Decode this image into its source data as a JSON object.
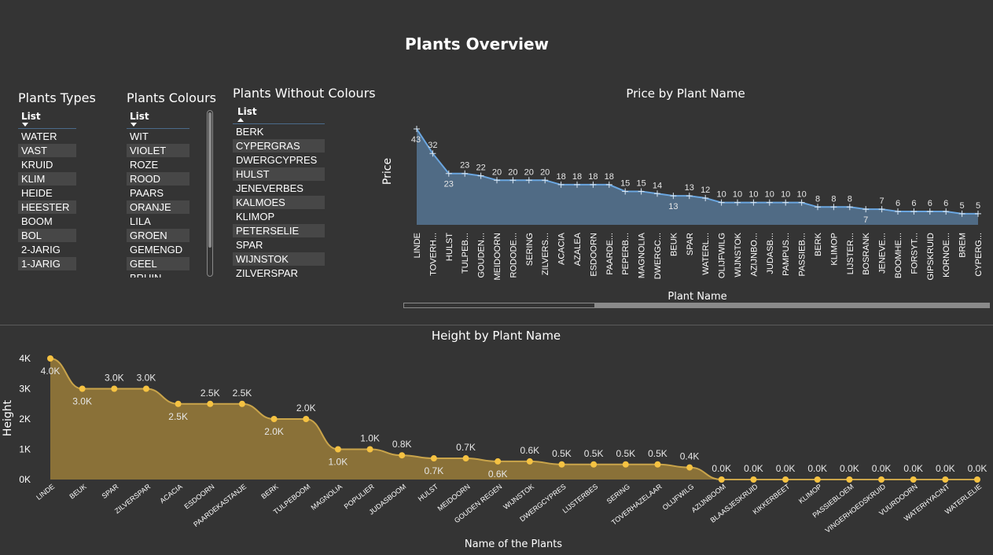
{
  "page": {
    "title": "Plants Overview"
  },
  "slicers": {
    "types": {
      "title": "Plants Types",
      "sub": "List",
      "items": [
        "WATER",
        "VAST",
        "KRUID",
        "KLIM",
        "HEIDE",
        "HEESTER",
        "BOOM",
        "BOL",
        "2-JARIG",
        "1-JARIG"
      ]
    },
    "colours": {
      "title": "Plants Colours",
      "sub": "List",
      "items": [
        "WIT",
        "VIOLET",
        "ROZE",
        "ROOD",
        "PAARS",
        "ORANJE",
        "LILA",
        "GROEN",
        "GEMENGD",
        "GEEL",
        "BRUIN"
      ]
    },
    "without": {
      "title": "Plants Without Colours",
      "sub": "List",
      "items": [
        "BERK",
        "CYPERGRAS",
        "DWERGCYPRES",
        "HULST",
        "JENEVERBES",
        "KALMOES",
        "KLIMOP",
        "PETERSELIE",
        "SPAR",
        "WIJNSTOK",
        "ZILVERSPAR"
      ]
    }
  },
  "colors": {
    "price_fill": "#506b85",
    "price_line": "#6aa6e0",
    "height_fill": "#8a7138",
    "height_line": "#c9a44a",
    "height_point": "#f5c242"
  },
  "chart_data": [
    {
      "type": "area",
      "title": "Price by Plant Name",
      "xlabel": "Plant Name",
      "ylabel": "Price",
      "categories": [
        "LINDE",
        "TOVERH...",
        "HULST",
        "TULPEB...",
        "GOUDEN...",
        "MEIDOORN",
        "RODODE...",
        "SERING",
        "ZILVERS...",
        "ACACIA",
        "AZALEA",
        "ESDOORN",
        "PAARDE...",
        "PEPERB...",
        "MAGNOLIA",
        "DWERGC...",
        "BEUK",
        "SPAR",
        "WATERL...",
        "OLIJFWILG",
        "WIJNSTOK",
        "AZIJNBO...",
        "JUDASB...",
        "PAMPUS...",
        "PASSIEB...",
        "BERK",
        "KLIMOP",
        "LIJSTER...",
        "BOSRANK",
        "JENEVE...",
        "BOOMHE...",
        "FORSYT...",
        "GIPSKRUID",
        "KORNOE...",
        "BREM",
        "CYPERG..."
      ],
      "values": [
        43,
        32,
        23,
        23,
        22,
        20,
        20,
        20,
        20,
        18,
        18,
        18,
        18,
        15,
        15,
        14,
        13,
        13,
        12,
        10,
        10,
        10,
        10,
        10,
        10,
        8,
        8,
        8,
        7,
        7,
        6,
        6,
        6,
        6,
        5,
        5
      ],
      "labels": [
        "43",
        "32",
        "23",
        "23",
        "22",
        "20",
        "20",
        "20",
        "20",
        "18",
        "18",
        "18",
        "18",
        "15",
        "15",
        "14",
        "13",
        "13",
        "12",
        "10",
        "10",
        "10",
        "10",
        "10",
        "10",
        "8",
        "8",
        "8",
        "7",
        "7",
        "6",
        "6",
        "6",
        "6",
        "5",
        "5"
      ],
      "ylim": [
        0,
        45
      ]
    },
    {
      "type": "area",
      "title": "Height by Plant Name",
      "xlabel": "Name of the Plants",
      "ylabel": "Height",
      "yticks": [
        "0K",
        "1K",
        "2K",
        "3K",
        "4K"
      ],
      "categories": [
        "LINDE",
        "BEUK",
        "SPAR",
        "ZILVERSPAR",
        "ACACIA",
        "ESDOORN",
        "PAARDEKASTANJE",
        "BERK",
        "TULPEBOOM",
        "MAGNOLIA",
        "POPULIER",
        "JUDASBOOM",
        "HULST",
        "MEIDOORN",
        "GOUDEN REGEN",
        "WIJNSTOK",
        "DWERGCYPRES",
        "LIJSTERBES",
        "SERING",
        "TOVERHAZELAAR",
        "OLIJFWILG",
        "AZIJNBOOM",
        "BLAASJESKRUID",
        "KIKKERBEET",
        "KLIMOP",
        "PASSIEBLOEM",
        "VINGERHOEDSKRUID",
        "VUURDOORN",
        "WATERHYACINT",
        "WATERLELIE"
      ],
      "values": [
        4000,
        3000,
        3000,
        3000,
        2500,
        2500,
        2500,
        2000,
        2000,
        1000,
        1000,
        800,
        700,
        700,
        600,
        600,
        500,
        500,
        500,
        500,
        400,
        0,
        0,
        0,
        0,
        0,
        0,
        0,
        0,
        0
      ],
      "labels": [
        "4.0K",
        "3.0K",
        "3.0K",
        "3.0K",
        "2.5K",
        "2.5K",
        "2.5K",
        "2.0K",
        "2.0K",
        "1.0K",
        "1.0K",
        "0.8K",
        "0.7K",
        "0.7K",
        "0.6K",
        "0.6K",
        "0.5K",
        "0.5K",
        "0.5K",
        "0.5K",
        "0.4K",
        "0.0K",
        "0.0K",
        "0.0K",
        "0.0K",
        "0.0K",
        "0.0K",
        "0.0K",
        "0.0K",
        "0.0K"
      ],
      "ylim": [
        0,
        4000
      ]
    }
  ]
}
